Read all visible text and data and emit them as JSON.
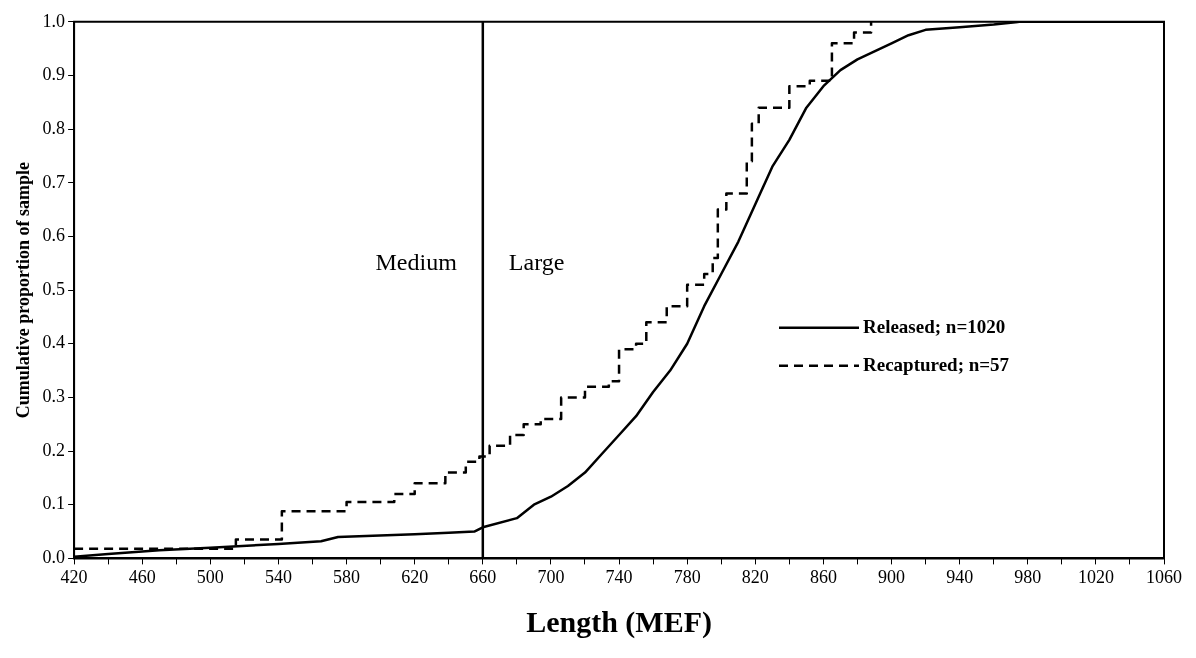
{
  "chart_data": {
    "type": "line",
    "xlabel": "Length (MEF)",
    "ylabel": "Cumulative proportion of sample",
    "xlim": [
      420,
      1060
    ],
    "ylim": [
      0,
      1.0
    ],
    "xticks": [
      420,
      {
        "value": 440,
        "label": null
      },
      460,
      {
        "value": 480,
        "label": null
      },
      500,
      {
        "value": 520,
        "label": null
      },
      540,
      {
        "value": 560,
        "label": null
      },
      580,
      {
        "value": 600,
        "label": null
      },
      620,
      {
        "value": 640,
        "label": null
      },
      660,
      {
        "value": 680,
        "label": null
      },
      700,
      {
        "value": 720,
        "label": null
      },
      740,
      {
        "value": 760,
        "label": null
      },
      780,
      {
        "value": 800,
        "label": null
      },
      820,
      {
        "value": 840,
        "label": null
      },
      860,
      {
        "value": 880,
        "label": null
      },
      900,
      {
        "value": 920,
        "label": null
      },
      940,
      {
        "value": 960,
        "label": null
      },
      980,
      {
        "value": 1000,
        "label": null
      },
      1020,
      {
        "value": 1040,
        "label": null
      },
      1060
    ],
    "yticks": [
      {
        "value": 0,
        "label": "0.0"
      },
      0.1,
      0.2,
      0.3,
      0.4,
      0.5,
      0.6,
      0.7,
      0.8,
      0.9,
      {
        "value": 1,
        "label": "1.0"
      }
    ],
    "grid": false,
    "legend": "right",
    "marker": "none",
    "series": [
      {
        "name": "Released; n=1020",
        "line_style": "solid",
        "color": "#000000",
        "x": [
          420,
          440,
          470,
          500,
          540,
          565,
          575,
          620,
          640,
          655,
          660,
          680,
          690,
          700,
          710,
          720,
          730,
          740,
          750,
          760,
          770,
          780,
          790,
          800,
          810,
          820,
          830,
          840,
          850,
          860,
          870,
          880,
          890,
          900,
          910,
          920,
          940,
          960,
          975,
          1060
        ],
        "values": [
          0.003,
          0.008,
          0.015,
          0.02,
          0.027,
          0.032,
          0.04,
          0.045,
          0.048,
          0.05,
          0.058,
          0.075,
          0.1,
          0.115,
          0.135,
          0.16,
          0.195,
          0.23,
          0.265,
          0.31,
          0.35,
          0.4,
          0.47,
          0.53,
          0.59,
          0.66,
          0.73,
          0.78,
          0.84,
          0.88,
          0.91,
          0.93,
          0.945,
          0.96,
          0.975,
          0.985,
          0.99,
          0.995,
          1.0,
          1.0
        ]
      },
      {
        "name": "Recaptured; n=57",
        "type": "step",
        "line_style": "dashed",
        "color": "#000000",
        "x": [
          420,
          515,
          542,
          580,
          608,
          620,
          638,
          650,
          658,
          664,
          676,
          684,
          694,
          706,
          720,
          734,
          740,
          750,
          756,
          768,
          780,
          790,
          795,
          798,
          803,
          815,
          818,
          822,
          840,
          852,
          865,
          878,
          888
        ],
        "values": [
          0.018,
          0.035,
          0.088,
          0.105,
          0.12,
          0.14,
          0.16,
          0.18,
          0.19,
          0.21,
          0.23,
          0.25,
          0.26,
          0.3,
          0.32,
          0.33,
          0.39,
          0.4,
          0.44,
          0.47,
          0.51,
          0.53,
          0.56,
          0.65,
          0.68,
          0.74,
          0.81,
          0.84,
          0.88,
          0.89,
          0.96,
          0.98,
          1.0
        ]
      }
    ],
    "ref_lines": [
      {
        "axis": "x",
        "value": 660,
        "color": "#000000"
      }
    ],
    "annotations": [
      "Medium",
      "Large"
    ]
  }
}
